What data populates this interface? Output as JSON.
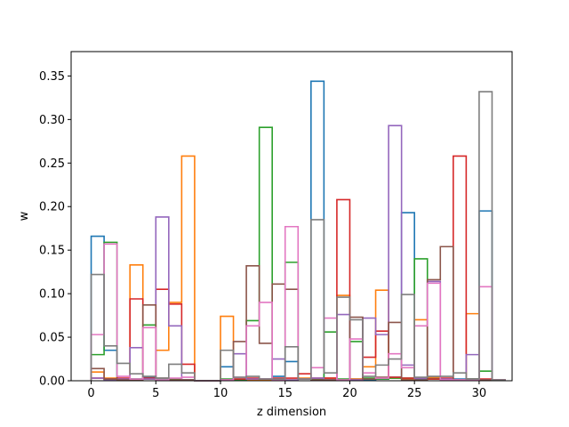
{
  "chart_data": {
    "type": "step",
    "xlabel": "z dimension",
    "ylabel": "w",
    "xlim": [
      -1.55,
      32.55
    ],
    "ylim": [
      0,
      0.378
    ],
    "xticks": [
      0,
      5,
      10,
      15,
      20,
      25,
      30
    ],
    "yticks": [
      0.0,
      0.05,
      0.1,
      0.15,
      0.2,
      0.25,
      0.3,
      0.35
    ],
    "ytick_labels": [
      "0.00",
      "0.05",
      "0.10",
      "0.15",
      "0.20",
      "0.25",
      "0.30",
      "0.35"
    ],
    "grid": false,
    "bins": 32,
    "series": [
      {
        "color": "#1f77b4",
        "values": [
          0.166,
          0.035,
          0.001,
          0.002,
          0.004,
          0.001,
          0.001,
          0.001,
          0.0,
          0.0,
          0.016,
          0.002,
          0.001,
          0.001,
          0.005,
          0.022,
          0.002,
          0.344,
          0.001,
          0.001,
          0.002,
          0.001,
          0.002,
          0.004,
          0.193,
          0.002,
          0.003,
          0.001,
          0.002,
          0.002,
          0.195,
          0.001
        ]
      },
      {
        "color": "#ff7f0e",
        "values": [
          0.01,
          0.003,
          0.002,
          0.133,
          0.002,
          0.035,
          0.09,
          0.258,
          0.0,
          0.0,
          0.074,
          0.001,
          0.001,
          0.001,
          0.001,
          0.001,
          0.003,
          0.002,
          0.003,
          0.098,
          0.002,
          0.016,
          0.104,
          0.003,
          0.002,
          0.07,
          0.004,
          0.002,
          0.001,
          0.077,
          0.001,
          0.001
        ]
      },
      {
        "color": "#2ca02c",
        "values": [
          0.03,
          0.159,
          0.001,
          0.002,
          0.064,
          0.001,
          0.002,
          0.001,
          0.0,
          0.0,
          0.002,
          0.001,
          0.069,
          0.291,
          0.002,
          0.136,
          0.002,
          0.002,
          0.056,
          0.002,
          0.045,
          0.003,
          0.002,
          0.003,
          0.003,
          0.14,
          0.002,
          0.002,
          0.001,
          0.002,
          0.011,
          0.001
        ]
      },
      {
        "color": "#d62728",
        "values": [
          0.003,
          0.002,
          0.003,
          0.094,
          0.003,
          0.105,
          0.088,
          0.019,
          0.0,
          0.0,
          0.001,
          0.002,
          0.003,
          0.002,
          0.003,
          0.003,
          0.008,
          0.003,
          0.003,
          0.208,
          0.001,
          0.027,
          0.057,
          0.004,
          0.003,
          0.003,
          0.002,
          0.003,
          0.258,
          0.001,
          0.002,
          0.001
        ]
      },
      {
        "color": "#9467bd",
        "values": [
          0.003,
          0.001,
          0.002,
          0.038,
          0.002,
          0.188,
          0.063,
          0.001,
          0.0,
          0.0,
          0.001,
          0.031,
          0.002,
          0.002,
          0.025,
          0.001,
          0.002,
          0.003,
          0.001,
          0.076,
          0.001,
          0.072,
          0.053,
          0.293,
          0.018,
          0.003,
          0.114,
          0.002,
          0.001,
          0.03,
          0.001,
          0.001
        ]
      },
      {
        "color": "#8c564b",
        "values": [
          0.014,
          0.002,
          0.001,
          0.001,
          0.087,
          0.003,
          0.001,
          0.001,
          0.0,
          0.0,
          0.001,
          0.045,
          0.132,
          0.043,
          0.111,
          0.105,
          0.002,
          0.001,
          0.001,
          0.001,
          0.073,
          0.002,
          0.004,
          0.067,
          0.001,
          0.001,
          0.116,
          0.154,
          0.001,
          0.002,
          0.001,
          0.001
        ]
      },
      {
        "color": "#e377c2",
        "values": [
          0.053,
          0.157,
          0.005,
          0.002,
          0.061,
          0.001,
          0.003,
          0.004,
          0.0,
          0.0,
          0.001,
          0.004,
          0.063,
          0.09,
          0.001,
          0.177,
          0.002,
          0.015,
          0.072,
          0.001,
          0.048,
          0.009,
          0.003,
          0.031,
          0.015,
          0.063,
          0.112,
          0.001,
          0.001,
          0.001,
          0.108,
          0.001
        ]
      },
      {
        "color": "#7f7f7f",
        "values": [
          0.122,
          0.04,
          0.02,
          0.008,
          0.005,
          0.003,
          0.019,
          0.009,
          0.0,
          0.0,
          0.035,
          0.004,
          0.005,
          0.002,
          0.002,
          0.039,
          0.002,
          0.185,
          0.009,
          0.096,
          0.07,
          0.005,
          0.018,
          0.025,
          0.099,
          0.004,
          0.005,
          0.005,
          0.009,
          0.002,
          0.332,
          0.001
        ]
      }
    ]
  }
}
